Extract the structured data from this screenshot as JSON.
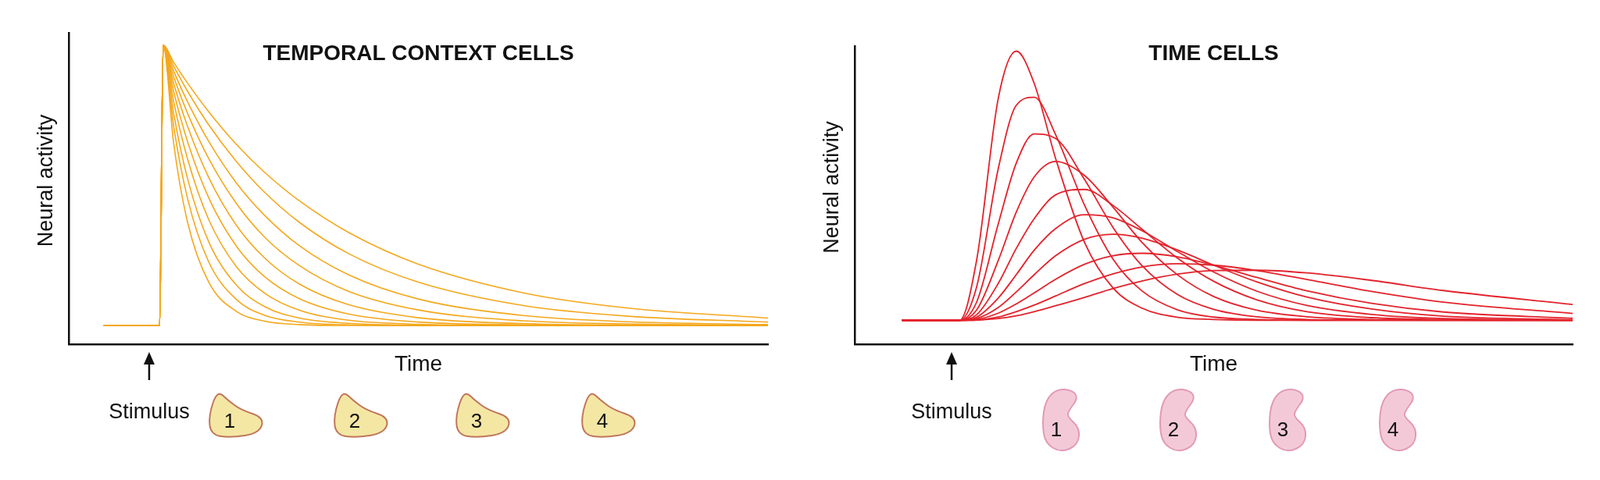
{
  "chart_data": [
    {
      "type": "line",
      "title": "TEMPORAL CONTEXT CELLS",
      "x_label": "Time",
      "y_label": "Neural activity",
      "color": "#f4a81d",
      "grid": false,
      "tick_labels": false,
      "xlim": [
        0,
        100
      ],
      "ylim": [
        0,
        100
      ],
      "stimulus": {
        "label": "Stimulus",
        "x": 11.5
      },
      "cell_labels": [
        "1",
        "2",
        "3",
        "4"
      ],
      "x": [
        5,
        13,
        13.5,
        15,
        17,
        20,
        24,
        28,
        33,
        40,
        50,
        65,
        80,
        100
      ],
      "series": [
        {
          "values": [
            6,
            6,
            96,
            64.6,
            39.1,
            20.0,
            10.5,
            7.4,
            6.3,
            6,
            6,
            6,
            6,
            6
          ]
        },
        {
          "values": [
            6,
            6,
            96,
            70.0,
            46.7,
            26.5,
            14.3,
            9.3,
            7.1,
            6.2,
            6,
            6,
            6,
            6
          ]
        },
        {
          "values": [
            6,
            6,
            96,
            74.1,
            53.1,
            33.0,
            18.9,
            12.1,
            8.4,
            6.7,
            6.1,
            6,
            6,
            6
          ]
        },
        {
          "values": [
            6,
            6,
            96,
            77.9,
            59.4,
            40.1,
            24.8,
            16.4,
            10.9,
            7.7,
            6.4,
            6,
            6,
            6
          ]
        },
        {
          "values": [
            6,
            6,
            96,
            81.1,
            65.0,
            47.1,
            31.4,
            21.7,
            14.6,
            9.7,
            7.1,
            6.2,
            6,
            6
          ]
        },
        {
          "values": [
            6,
            6,
            96,
            83.7,
            69.9,
            53.6,
            38.1,
            27.7,
            19.3,
            12.7,
            8.5,
            6.6,
            6.1,
            6
          ]
        },
        {
          "values": [
            6,
            6,
            96,
            85.9,
            74.1,
            59.7,
            45.1,
            34.4,
            25.2,
            17.0,
            11.0,
            7.5,
            6.5,
            6.1
          ]
        },
        {
          "values": [
            6,
            6,
            96,
            87.7,
            77.8,
            65.2,
            51.7,
            41.4,
            31.6,
            22.3,
            14.5,
            9.2,
            7.2,
            6.3
          ]
        },
        {
          "values": [
            6,
            6,
            96,
            89.3,
            81.2,
            70.5,
            58.6,
            48.8,
            39.1,
            29.1,
            19.9,
            12.4,
            9.0,
            7.1
          ]
        },
        {
          "values": [
            6,
            6,
            96,
            90.5,
            83.8,
            74.7,
            64.1,
            55.2,
            46.0,
            35.9,
            25.7,
            16.5,
            11.6,
            8.4
          ]
        }
      ]
    },
    {
      "type": "line",
      "title": "TIME CELLS",
      "x_label": "Time",
      "y_label": "Neural activity",
      "color": "#e3232c",
      "grid": false,
      "tick_labels": false,
      "xlim": [
        0,
        100
      ],
      "ylim": [
        0,
        100
      ],
      "stimulus": {
        "label": "Stimulus",
        "x": 13.5
      },
      "cell_labels": [
        "1",
        "2",
        "3",
        "4"
      ],
      "x": [
        6.6,
        14.6,
        17,
        20,
        22.5,
        25,
        28,
        32,
        36,
        40,
        45,
        50,
        56,
        63,
        72,
        82,
        100
      ],
      "series": [
        {
          "values": [
            8,
            8,
            28.4,
            82.5,
            98.3,
            87.5,
            62.2,
            34.2,
            18.8,
            12.1,
            9.0,
            8.3,
            8,
            8,
            8,
            8,
            8
          ]
        },
        {
          "values": [
            8,
            8,
            19.4,
            58.9,
            80.1,
            82.8,
            70.2,
            46.7,
            28.5,
            17.9,
            11.5,
            9.1,
            8.3,
            8,
            8,
            8,
            8
          ]
        },
        {
          "values": [
            8,
            8,
            14.2,
            40.4,
            60.7,
            70.5,
            69.0,
            55.3,
            39.1,
            26.4,
            16.6,
            11.7,
            9.2,
            8.3,
            8.1,
            8,
            8
          ]
        },
        {
          "values": [
            8,
            8,
            11.5,
            28.1,
            44.3,
            56.1,
            61.3,
            56.6,
            45.9,
            34.2,
            23.2,
            16.0,
            11.4,
            9.2,
            8.3,
            8.1,
            8
          ]
        },
        {
          "values": [
            8,
            8,
            9.9,
            20.4,
            32.1,
            42.1,
            50.1,
            51.9,
            46.5,
            38.6,
            28.8,
            21.1,
            14.9,
            10.9,
            8.9,
            8.3,
            8
          ]
        },
        {
          "values": [
            8,
            8,
            9.1,
            15.5,
            23.3,
            31.5,
            38.8,
            43.4,
            42.4,
            38.1,
            31.0,
            24.2,
            17.8,
            13.0,
            10.0,
            8.6,
            8.1
          ]
        },
        {
          "values": [
            8,
            8,
            8.6,
            12.3,
            17.5,
            23.3,
            29.7,
            35.2,
            36.9,
            35.6,
            31.6,
            26.5,
            20.9,
            15.8,
            11.8,
            9.4,
            8.2
          ]
        },
        {
          "values": [
            8,
            8,
            8.3,
            10.4,
            13.5,
            17.2,
            21.8,
            26.8,
            29.7,
            30.5,
            29.3,
            26.5,
            22.4,
            17.9,
            13.7,
            10.8,
            8.7
          ]
        },
        {
          "values": [
            8,
            8,
            8.1,
            9.1,
            10.9,
            13.1,
            16.2,
            20.3,
            23.6,
            25.9,
            27.0,
            26.5,
            24.7,
            21.7,
            17.7,
            14.1,
            10.3
          ]
        },
        {
          "values": [
            8,
            8,
            8.1,
            8.6,
            9.5,
            10.9,
            12.9,
            15.7,
            18.7,
            21.2,
            23.5,
            24.7,
            24.8,
            23.9,
            21.4,
            18.0,
            13.3
          ]
        }
      ]
    }
  ]
}
